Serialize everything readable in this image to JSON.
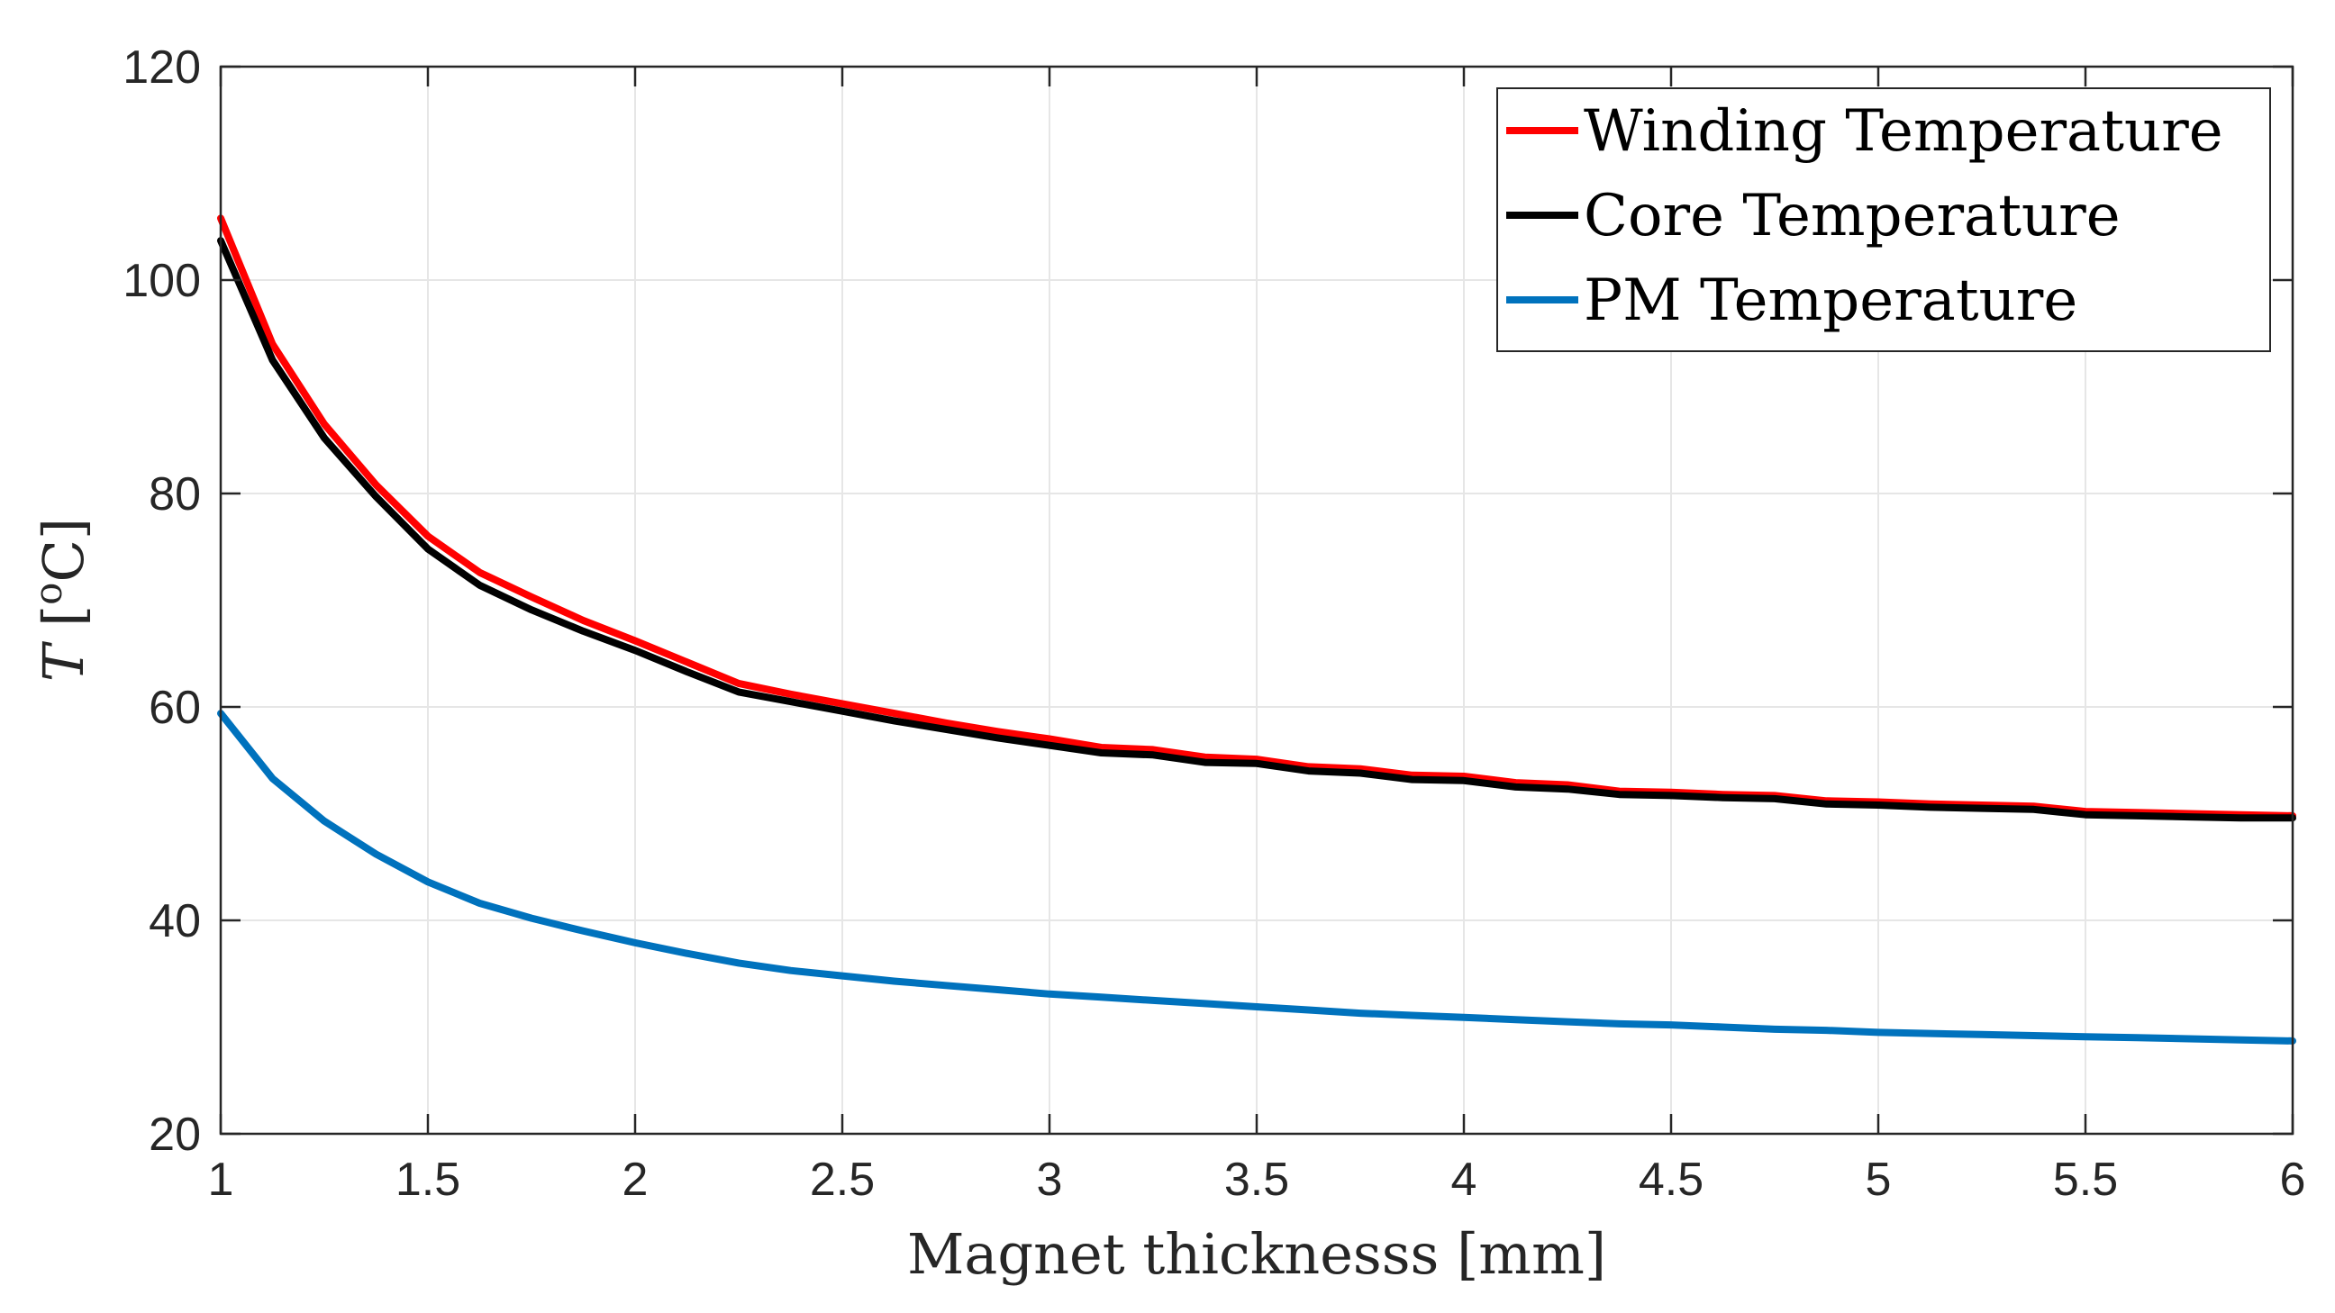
{
  "chart_data": {
    "type": "line",
    "xlabel": "Magnet thicknesss [mm]",
    "ylabel_main": "T",
    "ylabel_unit_open": " [",
    "ylabel_unit_sup": "o",
    "ylabel_unit_close": "C]",
    "xlim": [
      1,
      6
    ],
    "ylim": [
      20,
      120
    ],
    "xticks": [
      1,
      1.5,
      2,
      2.5,
      3,
      3.5,
      4,
      4.5,
      5,
      5.5,
      6
    ],
    "xtick_labels": [
      "1",
      "1.5",
      "2",
      "2.5",
      "3",
      "3.5",
      "4",
      "4.5",
      "5",
      "5.5",
      "6"
    ],
    "yticks": [
      20,
      40,
      60,
      80,
      100,
      120
    ],
    "ytick_labels": [
      "20",
      "40",
      "60",
      "80",
      "100",
      "120"
    ],
    "grid": true,
    "legend_position": "top-right",
    "x": [
      1.0,
      1.125,
      1.25,
      1.375,
      1.5,
      1.625,
      1.75,
      1.875,
      2.0,
      2.125,
      2.25,
      2.375,
      2.5,
      2.625,
      2.75,
      2.875,
      3.0,
      3.125,
      3.25,
      3.375,
      3.5,
      3.625,
      3.75,
      3.875,
      4.0,
      4.125,
      4.25,
      4.375,
      4.5,
      4.625,
      4.75,
      4.875,
      5.0,
      5.125,
      5.25,
      5.375,
      5.5,
      5.625,
      5.75,
      5.875,
      6.0
    ],
    "series": [
      {
        "name": "Winding Temperature",
        "color": "#ff0000",
        "values": [
          105.8,
          94.0,
          86.5,
          80.8,
          76.0,
          72.6,
          70.3,
          68.1,
          66.2,
          64.2,
          62.2,
          61.2,
          60.3,
          59.4,
          58.5,
          57.7,
          57.0,
          56.2,
          56.0,
          55.3,
          55.1,
          54.4,
          54.2,
          53.6,
          53.5,
          52.9,
          52.7,
          52.1,
          52.0,
          51.8,
          51.7,
          51.2,
          51.1,
          50.9,
          50.8,
          50.7,
          50.2,
          50.1,
          50.0,
          49.9,
          49.8
        ]
      },
      {
        "name": "Core Temperature",
        "color": "#000000",
        "values": [
          103.7,
          92.5,
          85.2,
          79.7,
          74.8,
          71.4,
          69.1,
          67.1,
          65.3,
          63.3,
          61.4,
          60.5,
          59.6,
          58.7,
          57.9,
          57.1,
          56.4,
          55.7,
          55.5,
          54.8,
          54.7,
          54.0,
          53.8,
          53.2,
          53.1,
          52.5,
          52.3,
          51.8,
          51.7,
          51.5,
          51.4,
          50.9,
          50.8,
          50.6,
          50.5,
          50.4,
          49.9,
          49.8,
          49.7,
          49.6,
          49.6
        ]
      },
      {
        "name": "PM Temperature",
        "color": "#0072bd",
        "values": [
          59.4,
          53.3,
          49.3,
          46.2,
          43.6,
          41.6,
          40.2,
          39.0,
          37.9,
          36.9,
          36.0,
          35.3,
          34.8,
          34.3,
          33.9,
          33.5,
          33.1,
          32.8,
          32.5,
          32.2,
          31.9,
          31.6,
          31.3,
          31.1,
          30.9,
          30.7,
          30.5,
          30.3,
          30.2,
          30.0,
          29.8,
          29.7,
          29.5,
          29.4,
          29.3,
          29.2,
          29.1,
          29.0,
          28.9,
          28.8,
          28.7
        ]
      }
    ]
  }
}
